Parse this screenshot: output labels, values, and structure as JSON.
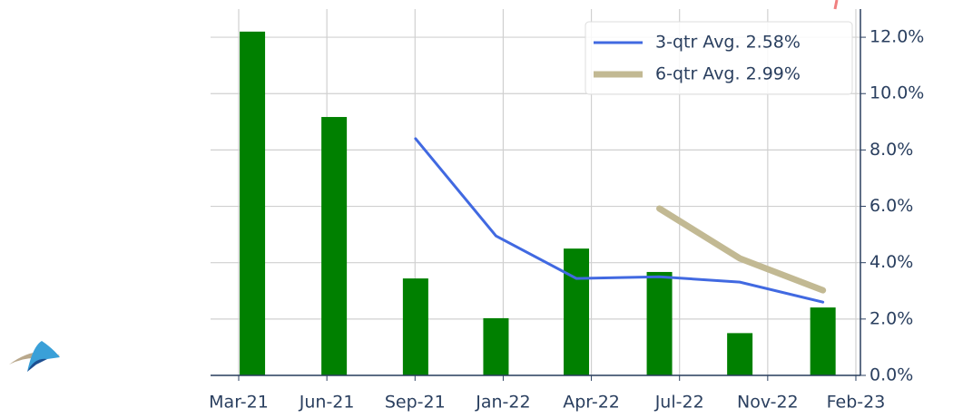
{
  "chart_data": {
    "type": "bar",
    "x": [
      2.51,
      5.56,
      8.6,
      11.6,
      14.6,
      17.7,
      20.7,
      23.8
    ],
    "values": [
      12.2,
      9.17,
      3.44,
      2.03,
      4.5,
      3.67,
      1.5,
      2.41
    ],
    "color": "#008000",
    "lines": [
      {
        "name": "3-qtr Avg. 2.58%",
        "color": "#4169e1",
        "width": 3,
        "values": [
          null,
          null,
          8.4,
          4.95,
          3.44,
          3.5,
          3.31,
          2.6
        ]
      },
      {
        "name": "6-qtr Avg. 2.99%",
        "color": "#c2b993",
        "width": 7,
        "values": [
          null,
          null,
          null,
          null,
          null,
          5.92,
          4.15,
          3.02
        ]
      }
    ],
    "xlim": [
      0.95,
      25.2
    ],
    "xticks": [
      {
        "value": 2,
        "label": "Mar-21"
      },
      {
        "value": 5.29,
        "label": "Jun-21"
      },
      {
        "value": 8.58,
        "label": "Sep-21"
      },
      {
        "value": 11.87,
        "label": "Jan-22"
      },
      {
        "value": 15.16,
        "label": "Apr-22"
      },
      {
        "value": 18.45,
        "label": "Jul-22"
      },
      {
        "value": 21.74,
        "label": "Nov-22"
      },
      {
        "value": 25.03,
        "label": "Feb-23"
      }
    ],
    "ylim": [
      0,
      13
    ],
    "yticks": [
      {
        "value": 0,
        "label": "0.0%"
      },
      {
        "value": 2,
        "label": "2.0%"
      },
      {
        "value": 4,
        "label": "4.0%"
      },
      {
        "value": 6,
        "label": "6.0%"
      },
      {
        "value": 8,
        "label": "8.0%"
      },
      {
        "value": 10,
        "label": "10.0%"
      },
      {
        "value": 12,
        "label": "12.0%"
      }
    ],
    "grid": true,
    "legend": "upper right"
  }
}
